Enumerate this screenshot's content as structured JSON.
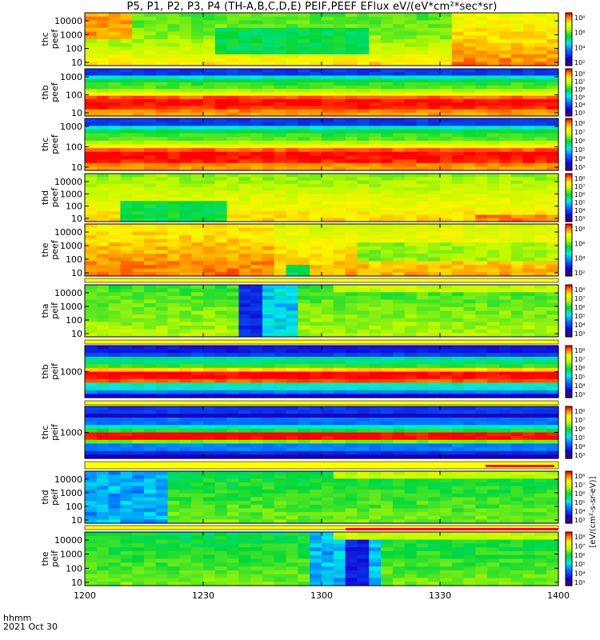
{
  "title": "P5, P1, P2, P3, P4 (TH-A,B,C,D,E) PEIF,PEEF EFlux eV/(eV*cm²*sec*sr)",
  "time_axis_label": "hhmm",
  "date_label": "2021 Oct 30",
  "colorbar_unit_label": "[eV/(cm²-s-sr-eV)]",
  "colors": {
    "background": "#ffffff",
    "highlight_bar": "#ffff00",
    "flag_bar": "#ff0000"
  },
  "chart_data": {
    "type": "heatmap",
    "x_ticks": [
      "1200",
      "1230",
      "1300",
      "1330",
      "1400"
    ],
    "xlim": [
      "1200",
      "1400"
    ],
    "y_scale": "log",
    "colorbar_scale": "log",
    "colormap": "rainbow (purple-blue-cyan-green-yellow-red)",
    "panels": [
      {
        "probe": "thc",
        "product": "peef",
        "ylabel": [
          "thc",
          "peef"
        ],
        "yticks": [
          "10000",
          "1000",
          "100",
          "10"
        ],
        "cbar_ticks": [
          "10⁸",
          "10⁶",
          "10⁴",
          "10²"
        ],
        "base": "ee",
        "seed": 3
      },
      {
        "probe": "thb",
        "product": "peef",
        "ylabel": [
          "thb",
          "peef"
        ],
        "yticks": [
          "1000",
          "100",
          "10"
        ],
        "cbar_ticks": [
          "10⁸",
          "10⁷",
          "10⁶",
          "10⁵",
          "10⁴",
          "10³"
        ],
        "base": "bands",
        "seed": 7
      },
      {
        "probe": "thc",
        "product": "peef",
        "ylabel": [
          "thc",
          "peef"
        ],
        "yticks": [
          "1000",
          "100",
          "10"
        ],
        "cbar_ticks": [
          "10⁸",
          "10⁷",
          "10⁶",
          "10⁵",
          "10⁴",
          "10³"
        ],
        "base": "bands",
        "seed": 11
      },
      {
        "probe": "thd",
        "product": "peef",
        "ylabel": [
          "thd",
          "peef"
        ],
        "yticks": [
          "10000",
          "1000",
          "100",
          "10"
        ],
        "cbar_ticks": [
          "10⁸",
          "10⁷",
          "10⁶",
          "10⁵",
          "10⁴",
          "10³"
        ],
        "base": "ee2",
        "seed": 13
      },
      {
        "probe": "the",
        "product": "peef",
        "ylabel": [
          "the",
          "peef"
        ],
        "yticks": [
          "10000",
          "1000",
          "100",
          "10"
        ],
        "cbar_ticks": [
          "10⁸",
          "10⁶",
          "10⁴",
          "10²"
        ],
        "base": "ee3",
        "seed": 17
      },
      {
        "probe": "tha",
        "product": "peif",
        "ylabel": [
          "tha",
          "peif"
        ],
        "yticks": [
          "10000",
          "1000",
          "100",
          "10"
        ],
        "cbar_ticks": [
          "10⁸",
          "10⁷",
          "10⁶",
          "10⁵",
          "10⁴",
          "10³"
        ],
        "base": "ion",
        "seed": 19
      },
      {
        "probe": "thb",
        "product": "peif",
        "ylabel": [
          "thb",
          "peif"
        ],
        "yticks": [
          "1000"
        ],
        "cbar_ticks": [
          "10⁸",
          "10⁷",
          "10⁶",
          "10⁵",
          "10⁴",
          "10³"
        ],
        "base": "ionbands",
        "seed": 23
      },
      {
        "probe": "thc",
        "product": "peif",
        "ylabel": [
          "thc",
          "peif"
        ],
        "yticks": [
          "1000"
        ],
        "cbar_ticks": [
          "10⁸",
          "10⁷",
          "10⁶",
          "10⁵",
          "10⁴",
          "10³"
        ],
        "base": "ionbands2",
        "seed": 29
      },
      {
        "probe": "thd",
        "product": "peif",
        "ylabel": [
          "thd",
          "peif"
        ],
        "yticks": [
          "10000",
          "1000",
          "100",
          "10"
        ],
        "cbar_ticks": [
          "10⁸",
          "10⁷",
          "10⁶",
          "10⁵",
          "10⁴",
          "10³"
        ],
        "base": "ion2",
        "seed": 31
      },
      {
        "probe": "the",
        "product": "peif",
        "ylabel": [
          "the",
          "peif"
        ],
        "yticks": [
          "10000",
          "1000",
          "100",
          "10"
        ],
        "cbar_ticks": [
          "10⁸",
          "10⁷",
          "10⁶",
          "10⁵",
          "10⁴",
          "10³"
        ],
        "base": "ion3",
        "seed": 37
      }
    ]
  }
}
